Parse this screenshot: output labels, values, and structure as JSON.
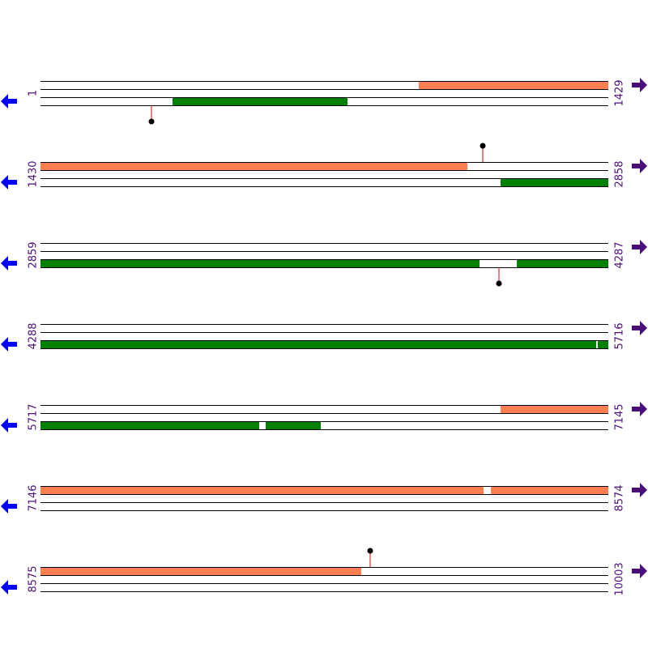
{
  "rows": [
    {
      "start": "1",
      "end": "1429"
    },
    {
      "start": "1430",
      "end": "2858"
    },
    {
      "start": "2859",
      "end": "4287"
    },
    {
      "start": "4288",
      "end": "5716"
    },
    {
      "start": "5717",
      "end": "7145"
    },
    {
      "start": "7146",
      "end": "8574"
    },
    {
      "start": "8575",
      "end": "10003"
    }
  ]
}
